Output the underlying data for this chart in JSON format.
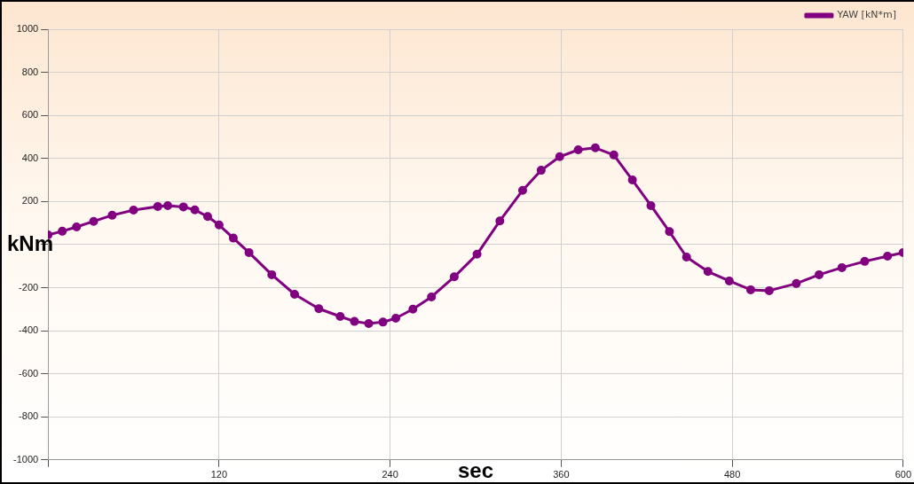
{
  "chart_data": {
    "type": "line",
    "xlabel": "sec",
    "ylabel": "kNm",
    "series": [
      {
        "name": "YAW [kN*m]",
        "color": "#800080",
        "x": [
          0,
          10,
          20,
          32,
          45,
          60,
          77,
          84,
          95,
          103,
          112,
          120,
          130,
          141,
          157,
          173,
          190,
          205,
          215,
          225,
          235,
          244,
          256,
          269,
          285,
          301,
          317,
          333,
          346,
          359,
          372,
          384,
          397,
          410,
          423,
          436,
          448,
          463,
          478,
          493,
          506,
          525,
          541,
          557,
          573,
          589,
          600
        ],
        "values": [
          45,
          62,
          82,
          108,
          136,
          160,
          177,
          181,
          175,
          161,
          130,
          91,
          30,
          -37,
          -140,
          -231,
          -298,
          -334,
          -357,
          -367,
          -360,
          -342,
          -300,
          -243,
          -150,
          -45,
          110,
          252,
          345,
          408,
          440,
          449,
          416,
          300,
          181,
          60,
          -58,
          -125,
          -169,
          -210,
          -214,
          -181,
          -140,
          -107,
          -78,
          -54,
          -37
        ]
      }
    ],
    "xlim": [
      0,
      600
    ],
    "xticks": [
      {
        "value": 0,
        "label": null
      },
      120,
      240,
      360,
      480,
      600
    ],
    "ylim": [
      -1000,
      1000
    ],
    "yticks": [
      -1000,
      -800,
      -600,
      -400,
      -200,
      {
        "value": 0,
        "label": null
      },
      200,
      400,
      600,
      800,
      1000
    ],
    "grid": true,
    "legend": "top right",
    "marker": "circle",
    "line_style": "solid"
  }
}
